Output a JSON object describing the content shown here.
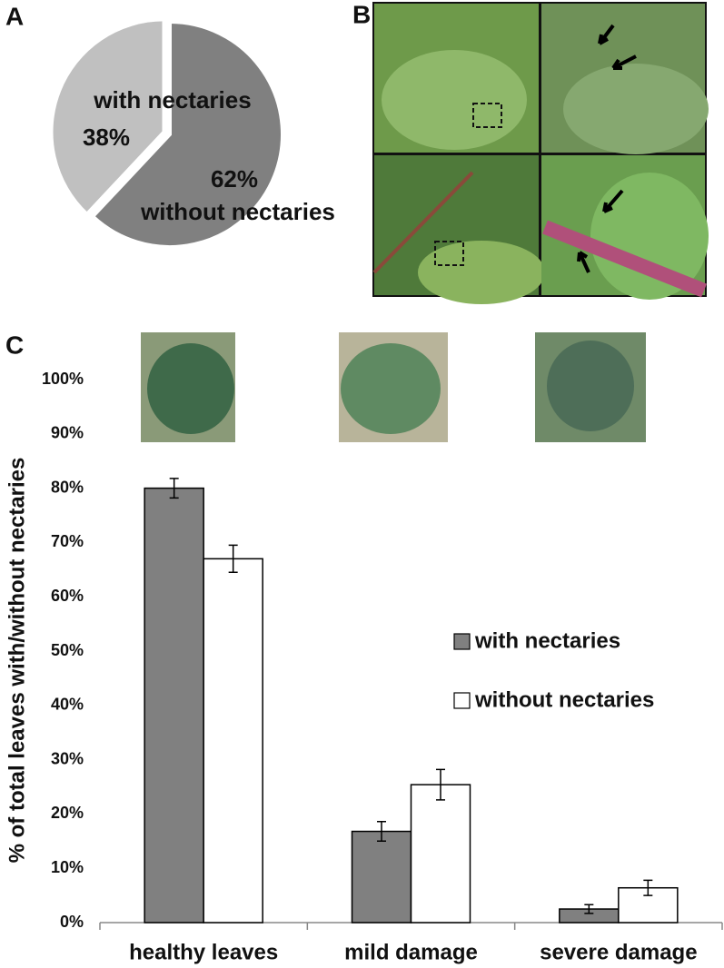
{
  "chart_data": [
    {
      "type": "pie",
      "panel": "A",
      "categories": [
        "with nectaries",
        "without nectaries"
      ],
      "values": [
        38,
        62
      ],
      "value_labels": [
        "38%",
        "62%"
      ],
      "colors": [
        "#c0c0c0",
        "#808080"
      ]
    },
    {
      "type": "image",
      "panel": "B"
    },
    {
      "type": "bar",
      "panel": "C",
      "categories": [
        "healthy leaves",
        "mild damage",
        "severe damage"
      ],
      "y_label": "% of total leaves with/without nectaries",
      "series": [
        {
          "name": "with nectaries",
          "color": "#808080",
          "values": [
            80,
            16.8,
            2.5
          ],
          "errors": [
            1.8,
            1.8,
            0.8
          ]
        },
        {
          "name": "without nectaries",
          "color": "#ffffff",
          "values": [
            67,
            25.4,
            6.4
          ],
          "errors": [
            2.5,
            2.8,
            1.4
          ]
        }
      ],
      "ylim": [
        0,
        100
      ],
      "yticks": [
        {
          "value": 0,
          "label": "0%"
        },
        {
          "value": 10,
          "label": "10%"
        },
        {
          "value": 20,
          "label": "20%"
        },
        {
          "value": 30,
          "label": "30%"
        },
        {
          "value": 40,
          "label": "40%"
        },
        {
          "value": 50,
          "label": "50%"
        },
        {
          "value": 60,
          "label": "60%"
        },
        {
          "value": 70,
          "label": "70%"
        },
        {
          "value": 80,
          "label": "80%"
        },
        {
          "value": 90,
          "label": "90%"
        },
        {
          "value": 100,
          "label": "100%"
        }
      ],
      "grid": false
    }
  ]
}
